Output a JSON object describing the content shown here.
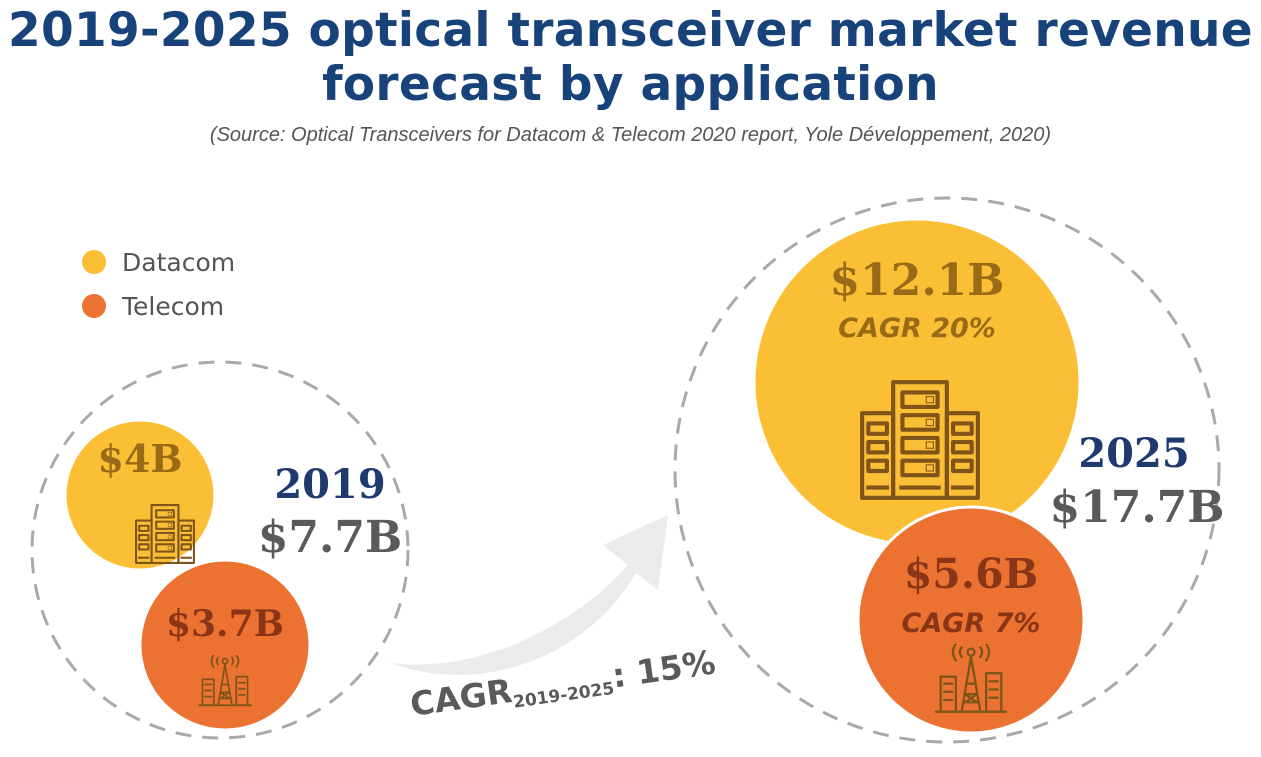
{
  "title_line1": "2019-2025 optical transceiver market revenue",
  "title_line2": "forecast by application",
  "subtitle": "(Source: Optical Transceivers for Datacom & Telecom 2020 report, Yole Développement, 2020)",
  "legend": [
    {
      "label": "Datacom",
      "color": "#fbbf35"
    },
    {
      "label": "Telecom",
      "color": "#ec7232"
    }
  ],
  "chart_data": {
    "type": "bubble",
    "unit": "$B",
    "series": [
      "Datacom",
      "Telecom"
    ],
    "years": [
      {
        "year": "2019",
        "total": 7.7,
        "total_label": "$7.7B",
        "segments": [
          {
            "series": "Datacom",
            "value": 4.0,
            "label": "$4B",
            "cagr_label": "",
            "icon": "server-rack-icon"
          },
          {
            "series": "Telecom",
            "value": 3.7,
            "label": "$3.7B",
            "cagr_label": "",
            "icon": "antenna-tower-icon"
          }
        ]
      },
      {
        "year": "2025",
        "total": 17.7,
        "total_label": "$17.7B",
        "segments": [
          {
            "series": "Datacom",
            "value": 12.1,
            "label": "$12.1B",
            "cagr_label": "CAGR 20%",
            "icon": "server-rack-icon"
          },
          {
            "series": "Telecom",
            "value": 5.6,
            "label": "$5.6B",
            "cagr_label": "CAGR 7%",
            "icon": "antenna-tower-icon"
          }
        ]
      }
    ],
    "overall_cagr": {
      "prefix": "CAGR",
      "period": "2019-2025",
      "suffix": ": 15%",
      "value_pct": 15
    }
  },
  "colors": {
    "title": "#17427a",
    "year_text": "#1f3b6e",
    "total_text": "#5a5a5a",
    "datacom": "#fbbf35",
    "datacom_text": "#9a6b17",
    "telecom": "#ec7232",
    "telecom_text": "#8a3616",
    "icon_stroke": "#7f5418",
    "dashed": "#a9a9a9",
    "arrow": "#ebebeb"
  }
}
